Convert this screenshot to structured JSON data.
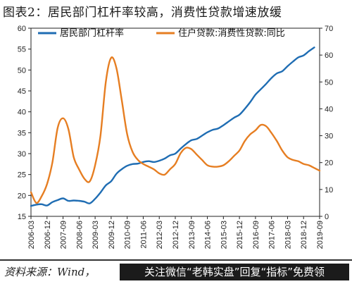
{
  "header": {
    "title": "图表2：居民部门杠杆率较高，消费性贷款增速放缓"
  },
  "footer": {
    "source": "资料来源：Wind，",
    "banner": "关注微信“老韩实盘”回复“指标”免费领"
  },
  "chart_data": {
    "type": "line",
    "title": "图表2：居民部门杠杆率较高，消费性贷款增速放缓",
    "xlabel": "",
    "ylabel": "",
    "x_ticks": [
      "2006-03",
      "2006-12",
      "2007-09",
      "2008-06",
      "2009-03",
      "2009-12",
      "2010-09",
      "2011-06",
      "2012-03",
      "2012-12",
      "2013-09",
      "2014-06",
      "2015-03",
      "2015-12",
      "2016-09",
      "2017-06",
      "2018-03",
      "2018-12",
      "2019-09"
    ],
    "y_left": {
      "min": 15,
      "max": 60,
      "ticks": [
        15,
        20,
        25,
        30,
        35,
        40,
        45,
        50,
        55,
        60
      ]
    },
    "y_right": {
      "min": 0,
      "max": 70,
      "ticks": [
        0,
        10,
        20,
        30,
        40,
        50,
        60,
        70
      ]
    },
    "legend_position": "top",
    "series": [
      {
        "name": "居民部门杠杆率",
        "axis": "left",
        "color": "#1f6db3",
        "points": [
          [
            "2006-03",
            17.5
          ],
          [
            "2006-06",
            17.8
          ],
          [
            "2006-09",
            17.9
          ],
          [
            "2006-12",
            17.6
          ],
          [
            "2007-03",
            18.4
          ],
          [
            "2007-06",
            18.9
          ],
          [
            "2007-09",
            19.3
          ],
          [
            "2007-12",
            18.7
          ],
          [
            "2008-03",
            18.8
          ],
          [
            "2008-06",
            18.7
          ],
          [
            "2008-09",
            18.5
          ],
          [
            "2008-12",
            18.1
          ],
          [
            "2009-03",
            19.2
          ],
          [
            "2009-06",
            20.7
          ],
          [
            "2009-09",
            22.4
          ],
          [
            "2009-12",
            23.4
          ],
          [
            "2010-03",
            25.2
          ],
          [
            "2010-06",
            26.3
          ],
          [
            "2010-09",
            27.1
          ],
          [
            "2010-12",
            27.5
          ],
          [
            "2011-03",
            27.6
          ],
          [
            "2011-06",
            28.0
          ],
          [
            "2011-09",
            28.2
          ],
          [
            "2011-12",
            28.0
          ],
          [
            "2012-03",
            28.3
          ],
          [
            "2012-06",
            28.8
          ],
          [
            "2012-09",
            29.6
          ],
          [
            "2012-12",
            30.0
          ],
          [
            "2013-03",
            31.2
          ],
          [
            "2013-06",
            32.3
          ],
          [
            "2013-09",
            33.2
          ],
          [
            "2013-12",
            33.5
          ],
          [
            "2014-03",
            34.3
          ],
          [
            "2014-06",
            35.1
          ],
          [
            "2014-09",
            35.7
          ],
          [
            "2014-12",
            36.0
          ],
          [
            "2015-03",
            36.8
          ],
          [
            "2015-06",
            37.7
          ],
          [
            "2015-09",
            38.6
          ],
          [
            "2015-12",
            39.3
          ],
          [
            "2016-03",
            40.7
          ],
          [
            "2016-06",
            42.3
          ],
          [
            "2016-09",
            44.1
          ],
          [
            "2016-12",
            45.4
          ],
          [
            "2017-03",
            46.7
          ],
          [
            "2017-06",
            48.1
          ],
          [
            "2017-09",
            49.2
          ],
          [
            "2017-12",
            49.7
          ],
          [
            "2018-03",
            50.9
          ],
          [
            "2018-06",
            52.0
          ],
          [
            "2018-09",
            53.0
          ],
          [
            "2018-12",
            53.5
          ],
          [
            "2019-03",
            54.5
          ],
          [
            "2019-06",
            55.4
          ]
        ]
      },
      {
        "name": "住户贷款:消费性贷款:同比",
        "axis": "right",
        "color": "#e67e22",
        "points": [
          [
            "2006-03",
            9.0
          ],
          [
            "2006-06",
            5.0
          ],
          [
            "2006-09",
            7.5
          ],
          [
            "2006-12",
            12.0
          ],
          [
            "2007-03",
            20.0
          ],
          [
            "2007-06",
            33.0
          ],
          [
            "2007-09",
            36.5
          ],
          [
            "2007-12",
            32.5
          ],
          [
            "2008-03",
            22.0
          ],
          [
            "2008-06",
            17.5
          ],
          [
            "2008-09",
            14.0
          ],
          [
            "2008-12",
            13.0
          ],
          [
            "2009-03",
            19.0
          ],
          [
            "2009-06",
            30.0
          ],
          [
            "2009-09",
            50.0
          ],
          [
            "2009-12",
            59.0
          ],
          [
            "2010-03",
            55.0
          ],
          [
            "2010-06",
            43.0
          ],
          [
            "2010-09",
            30.5
          ],
          [
            "2010-12",
            24.0
          ],
          [
            "2011-03",
            21.0
          ],
          [
            "2011-06",
            19.5
          ],
          [
            "2011-09",
            18.5
          ],
          [
            "2011-12",
            17.5
          ],
          [
            "2012-03",
            16.0
          ],
          [
            "2012-06",
            15.5
          ],
          [
            "2012-09",
            17.5
          ],
          [
            "2012-12",
            19.5
          ],
          [
            "2013-03",
            23.5
          ],
          [
            "2013-06",
            25.5
          ],
          [
            "2013-09",
            25.0
          ],
          [
            "2013-12",
            23.0
          ],
          [
            "2014-03",
            21.0
          ],
          [
            "2014-06",
            19.0
          ],
          [
            "2014-09",
            18.5
          ],
          [
            "2014-12",
            18.5
          ],
          [
            "2015-03",
            19.0
          ],
          [
            "2015-06",
            20.5
          ],
          [
            "2015-09",
            22.5
          ],
          [
            "2015-12",
            24.5
          ],
          [
            "2016-03",
            28.0
          ],
          [
            "2016-06",
            30.5
          ],
          [
            "2016-09",
            32.0
          ],
          [
            "2016-12",
            34.0
          ],
          [
            "2017-03",
            33.5
          ],
          [
            "2017-06",
            31.0
          ],
          [
            "2017-09",
            28.0
          ],
          [
            "2017-12",
            24.5
          ],
          [
            "2018-03",
            22.0
          ],
          [
            "2018-06",
            21.0
          ],
          [
            "2018-09",
            20.5
          ],
          [
            "2018-12",
            19.5
          ],
          [
            "2019-03",
            19.0
          ],
          [
            "2019-06",
            18.0
          ],
          [
            "2019-09",
            17.0
          ]
        ]
      }
    ]
  }
}
